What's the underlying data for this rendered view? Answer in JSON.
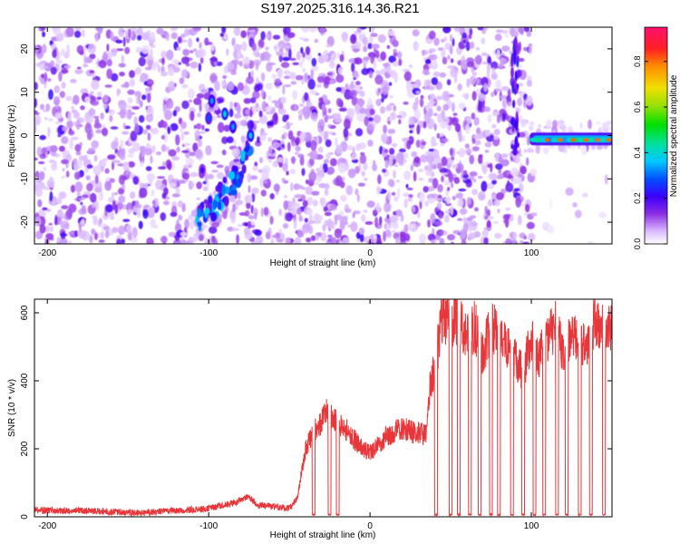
{
  "title": "S197.2025.316.14.36.R21",
  "chart_data": [
    {
      "type": "heatmap",
      "xlabel": "Height of straight line (km)",
      "ylabel": "Frequency (Hz)",
      "xlim": [
        -208,
        150
      ],
      "ylim": [
        -25,
        25
      ],
      "x_ticks": [
        -200,
        -100,
        0,
        100
      ],
      "y_ticks": [
        -20,
        -10,
        0,
        10,
        20
      ],
      "colorbar": {
        "label": "Normalized spectral amplitude",
        "range": [
          0,
          0.95
        ],
        "ticks": [
          0.0,
          0.2,
          0.4,
          0.6,
          0.8
        ],
        "tick_labels": [
          "0.0",
          "0.2",
          "0.4",
          "0.6",
          "0.8"
        ]
      },
      "features": [
        {
          "name": "diagonal streak",
          "x_range": [
            -108,
            -73
          ],
          "y_range": [
            -20,
            8
          ],
          "max_amplitude": 0.35
        },
        {
          "name": "vertical streak",
          "x_range": [
            88,
            92
          ],
          "y_range": [
            -5,
            22
          ],
          "max_amplitude": 0.3
        },
        {
          "name": "carrier",
          "x_range": [
            100,
            150
          ],
          "y": -1,
          "max_amplitude": 0.85
        },
        {
          "name": "blank region",
          "x_range": [
            100,
            150
          ],
          "y_range": [
            3,
            25
          ],
          "max_amplitude": 0
        }
      ]
    },
    {
      "type": "line",
      "xlabel": "Height of straight line (km)",
      "ylabel": "SNR (10 * v/v)",
      "xlim": [
        -208,
        150
      ],
      "ylim": [
        0,
        640
      ],
      "x_ticks": [
        -200,
        -100,
        0,
        100
      ],
      "y_ticks": [
        0,
        200,
        400,
        600
      ],
      "series": [
        {
          "color": "#e8373a",
          "x": [
            -208,
            -180,
            -160,
            -140,
            -120,
            -100,
            -85,
            -75,
            -70,
            -60,
            -50,
            -45,
            -40,
            -35,
            -30,
            -28,
            -25,
            -20,
            -15,
            -10,
            -5,
            0,
            5,
            10,
            15,
            20,
            25,
            30,
            35,
            37,
            40,
            45,
            50,
            55,
            60,
            65,
            70,
            75,
            80,
            85,
            90,
            95,
            100,
            105,
            110,
            115,
            120,
            125,
            130,
            135,
            140,
            145,
            150
          ],
          "values": [
            20,
            18,
            15,
            12,
            18,
            25,
            40,
            60,
            35,
            30,
            25,
            55,
            200,
            250,
            280,
            320,
            300,
            280,
            260,
            230,
            200,
            190,
            210,
            240,
            250,
            260,
            250,
            245,
            240,
            380,
            430,
            600,
            560,
            590,
            520,
            560,
            480,
            560,
            540,
            500,
            470,
            420,
            530,
            470,
            520,
            560,
            470,
            540,
            500,
            520,
            580,
            540,
            560
          ],
          "dropouts": [
            -35,
            -25,
            -20,
            41,
            50,
            55,
            62,
            68,
            75,
            80,
            88,
            95,
            102,
            108,
            116,
            122,
            130,
            137,
            145
          ]
        }
      ]
    }
  ]
}
